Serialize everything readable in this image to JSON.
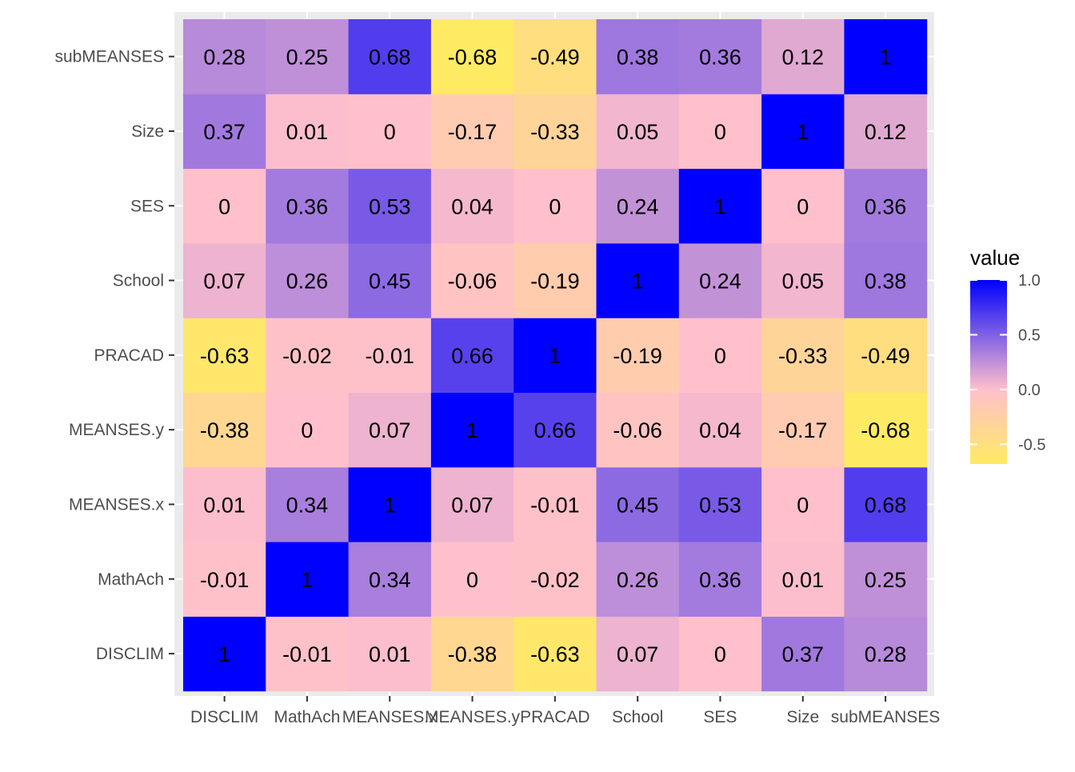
{
  "chart_data": {
    "type": "heatmap",
    "x_categories": [
      "DISCLIM",
      "MathAch",
      "MEANSES.x",
      "MEANSES.y",
      "PRACAD",
      "School",
      "SES",
      "Size",
      "subMEANSES"
    ],
    "y_categories": [
      "DISCLIM",
      "MathAch",
      "MEANSES.x",
      "MEANSES.y",
      "PRACAD",
      "School",
      "SES",
      "Size",
      "subMEANSES"
    ],
    "matrix": [
      [
        1,
        -0.01,
        0.01,
        -0.38,
        -0.63,
        0.07,
        0,
        0.37,
        0.28
      ],
      [
        -0.01,
        1,
        0.34,
        0,
        -0.02,
        0.26,
        0.36,
        0.01,
        0.25
      ],
      [
        0.01,
        0.34,
        1,
        0.07,
        -0.01,
        0.45,
        0.53,
        0,
        0.68
      ],
      [
        -0.38,
        0,
        0.07,
        1,
        0.66,
        -0.06,
        0.04,
        -0.17,
        -0.68
      ],
      [
        -0.63,
        -0.02,
        -0.01,
        0.66,
        1,
        -0.19,
        0,
        -0.33,
        -0.49
      ],
      [
        0.07,
        0.26,
        0.45,
        -0.06,
        -0.19,
        1,
        0.24,
        0.05,
        0.38
      ],
      [
        0,
        0.36,
        0.53,
        0.04,
        0,
        0.24,
        1,
        0,
        0.36
      ],
      [
        0.37,
        0.01,
        0,
        -0.17,
        -0.33,
        0.05,
        0,
        1,
        0.12
      ],
      [
        0.28,
        0.25,
        0.68,
        -0.68,
        -0.49,
        0.38,
        0.36,
        0.12,
        1
      ]
    ],
    "value_range": [
      -0.68,
      1
    ],
    "color_scale": {
      "low": "#FFEA63",
      "mid": "#FFC0CB",
      "high": "#0000FF",
      "midpoint": 0
    },
    "legend": {
      "title": "value",
      "ticks": [
        1.0,
        0.5,
        0.0,
        -0.5
      ],
      "tick_labels": [
        "1.0",
        "0.5",
        "0.0",
        "-0.5"
      ],
      "placement": "right"
    },
    "panel_background": "#EBEBEB",
    "grid": true
  }
}
